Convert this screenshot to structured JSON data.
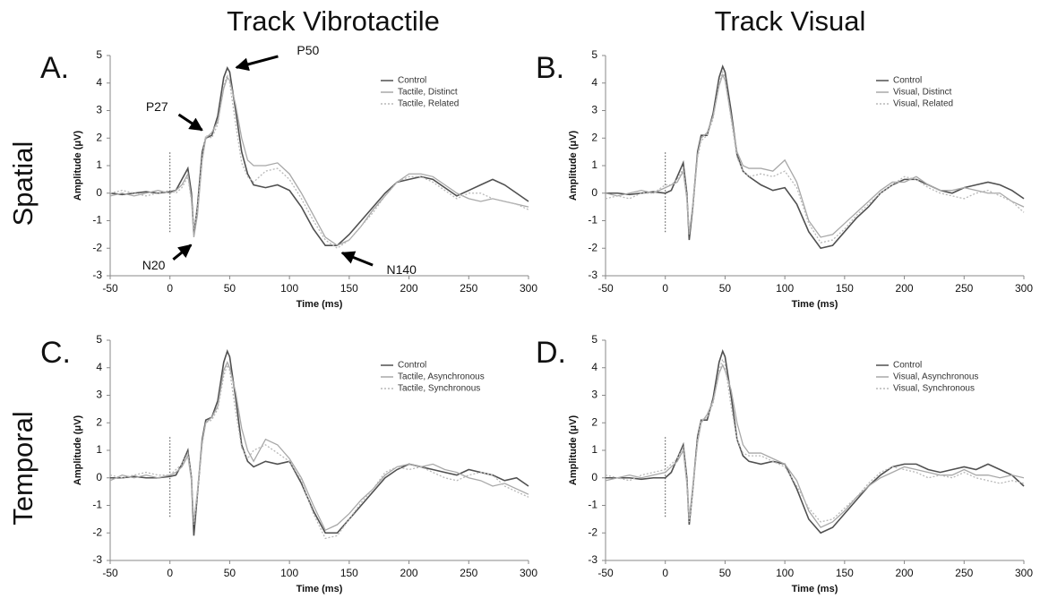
{
  "column_titles": [
    "Track Vibrotactile",
    "Track Visual"
  ],
  "row_titles": [
    "Spatial",
    "Temporal"
  ],
  "chart_data": [
    {
      "type": "line",
      "panel": "A.",
      "xlabel": "Time (ms)",
      "ylabel": "Amplitude (μV)",
      "x": [
        -50,
        -40,
        -30,
        -20,
        -10,
        0,
        5,
        10,
        15,
        18,
        20,
        23,
        27,
        30,
        35,
        40,
        45,
        48,
        50,
        55,
        60,
        65,
        70,
        80,
        90,
        100,
        110,
        120,
        130,
        140,
        150,
        160,
        170,
        180,
        190,
        200,
        210,
        220,
        230,
        240,
        250,
        260,
        270,
        280,
        290,
        300
      ],
      "series": [
        {
          "name": "Control",
          "color": "#505050",
          "values": [
            0,
            -0.05,
            0,
            0.05,
            0,
            0.05,
            0.1,
            0.5,
            0.9,
            0,
            -1.5,
            -0.5,
            1.5,
            2,
            2.1,
            2.8,
            4.2,
            4.55,
            4.4,
            3,
            1.5,
            0.7,
            0.3,
            0.2,
            0.3,
            0.1,
            -0.5,
            -1.3,
            -1.9,
            -1.9,
            -1.5,
            -1,
            -0.5,
            0,
            0.4,
            0.5,
            0.6,
            0.5,
            0.2,
            -0.1,
            0.1,
            0.3,
            0.5,
            0.3,
            0,
            -0.3
          ]
        },
        {
          "name": "Tactile, Distinct",
          "color": "#a8a8a8",
          "values": [
            -0.1,
            0,
            -0.1,
            0,
            0.1,
            0,
            0.1,
            0.3,
            0.7,
            -0.2,
            -1.6,
            -0.8,
            1.2,
            2,
            2.2,
            2.6,
            3.8,
            4.2,
            4.1,
            3.2,
            2,
            1.2,
            1,
            1,
            1.1,
            0.7,
            0,
            -0.8,
            -1.6,
            -1.9,
            -1.7,
            -1.2,
            -0.6,
            -0.1,
            0.4,
            0.7,
            0.7,
            0.6,
            0.3,
            0,
            -0.2,
            -0.3,
            -0.2,
            -0.3,
            -0.4,
            -0.5
          ]
        },
        {
          "name": "Tactile, Related",
          "color": "#b8b8b8",
          "dashed": true,
          "values": [
            0,
            0.1,
            0,
            -0.1,
            0,
            0.1,
            0,
            0.2,
            0.6,
            -0.3,
            -1.3,
            -0.6,
            1.3,
            2.1,
            2,
            2.5,
            3.9,
            4.3,
            4,
            2.5,
            1.1,
            0.6,
            0.4,
            0.8,
            0.9,
            0.5,
            -0.2,
            -1,
            -1.7,
            -2,
            -1.7,
            -1.2,
            -0.7,
            -0.1,
            0.4,
            0.6,
            0.6,
            0.4,
            0.1,
            -0.2,
            0,
            0,
            -0.2,
            -0.3,
            -0.4,
            -0.6
          ]
        }
      ],
      "annotations": [
        {
          "text": "P50",
          "x": 50,
          "y": 4.5
        },
        {
          "text": "P27",
          "x": 30,
          "y": 2.2
        },
        {
          "text": "N20",
          "x": 20,
          "y": -1.8
        },
        {
          "text": "N140",
          "x": 140,
          "y": -2.1
        }
      ],
      "xlim": [
        -50,
        300
      ],
      "ylim": [
        -3,
        5
      ],
      "xticks": [
        -50,
        0,
        50,
        100,
        150,
        200,
        250,
        300
      ],
      "yticks": [
        -3,
        -2,
        -1,
        0,
        1,
        2,
        3,
        4,
        5
      ]
    },
    {
      "type": "line",
      "panel": "B.",
      "xlabel": "Time (ms)",
      "ylabel": "Amplitude (μV)",
      "x": [
        -50,
        -40,
        -30,
        -20,
        -10,
        0,
        5,
        10,
        15,
        18,
        20,
        23,
        27,
        30,
        35,
        40,
        45,
        48,
        50,
        55,
        60,
        65,
        70,
        80,
        90,
        100,
        110,
        120,
        130,
        140,
        150,
        160,
        170,
        180,
        190,
        200,
        210,
        220,
        230,
        240,
        250,
        260,
        270,
        280,
        290,
        300
      ],
      "series": [
        {
          "name": "Control",
          "color": "#505050",
          "values": [
            0,
            0,
            -0.05,
            0,
            0.05,
            0,
            0.1,
            0.6,
            1.1,
            0,
            -1.7,
            -0.5,
            1.5,
            2.1,
            2.1,
            2.9,
            4.2,
            4.6,
            4.4,
            3,
            1.4,
            0.8,
            0.6,
            0.3,
            0.1,
            0.2,
            -0.4,
            -1.4,
            -2,
            -1.9,
            -1.4,
            -0.9,
            -0.5,
            0,
            0.3,
            0.5,
            0.5,
            0.3,
            0.1,
            0,
            0.2,
            0.3,
            0.4,
            0.3,
            0.1,
            -0.2
          ]
        },
        {
          "name": "Visual, Distinct",
          "color": "#a8a8a8",
          "values": [
            0,
            -0.1,
            0,
            0.1,
            0,
            0.2,
            0.3,
            0.4,
            0.8,
            -0.2,
            -1.5,
            -0.4,
            1.4,
            2,
            2.2,
            2.8,
            3.9,
            4.3,
            4.1,
            2.8,
            1.5,
            1,
            0.9,
            0.9,
            0.8,
            1.2,
            0.4,
            -1,
            -1.6,
            -1.5,
            -1.1,
            -0.7,
            -0.3,
            0.1,
            0.4,
            0.4,
            0.6,
            0.3,
            0.1,
            0.1,
            0.2,
            0.1,
            0,
            0,
            -0.3,
            -0.5
          ]
        },
        {
          "name": "Visual, Related",
          "color": "#b8b8b8",
          "dashed": true,
          "values": [
            -0.2,
            -0.1,
            -0.2,
            0,
            0,
            0.3,
            0.3,
            0.5,
            0.9,
            -0.1,
            -1.4,
            -0.5,
            1.3,
            1.9,
            2.1,
            2.7,
            4,
            4.4,
            4.2,
            2.7,
            1.3,
            0.8,
            0.6,
            0.7,
            0.6,
            0.8,
            0.2,
            -1.1,
            -1.8,
            -1.7,
            -1.3,
            -0.8,
            -0.4,
            0,
            0.3,
            0.6,
            0.5,
            0.2,
            0,
            -0.1,
            -0.2,
            0,
            0.1,
            -0.1,
            -0.3,
            -0.7
          ]
        }
      ],
      "xlim": [
        -50,
        300
      ],
      "ylim": [
        -3,
        5
      ],
      "xticks": [
        -50,
        0,
        50,
        100,
        150,
        200,
        250,
        300
      ],
      "yticks": [
        -3,
        -2,
        -1,
        0,
        1,
        2,
        3,
        4,
        5
      ]
    },
    {
      "type": "line",
      "panel": "C.",
      "xlabel": "Time (ms)",
      "ylabel": "Amplitude (μV)",
      "x": [
        -50,
        -40,
        -30,
        -20,
        -10,
        0,
        5,
        10,
        15,
        18,
        20,
        23,
        27,
        30,
        35,
        40,
        45,
        48,
        50,
        55,
        60,
        65,
        70,
        80,
        90,
        100,
        110,
        120,
        130,
        140,
        150,
        160,
        170,
        180,
        190,
        200,
        210,
        220,
        230,
        240,
        250,
        260,
        270,
        280,
        290,
        300
      ],
      "series": [
        {
          "name": "Control",
          "color": "#505050",
          "values": [
            0,
            0,
            0.05,
            0,
            0,
            0.05,
            0.1,
            0.5,
            1,
            0,
            -2.1,
            -0.6,
            1.4,
            2.1,
            2.2,
            2.8,
            4.2,
            4.6,
            4.4,
            2.9,
            1.2,
            0.6,
            0.4,
            0.6,
            0.5,
            0.6,
            -0.2,
            -1.2,
            -2,
            -2,
            -1.5,
            -1,
            -0.5,
            0,
            0.3,
            0.5,
            0.4,
            0.3,
            0.2,
            0.1,
            0.3,
            0.2,
            0.1,
            -0.1,
            0,
            -0.3
          ]
        },
        {
          "name": "Tactile, Asynchronous",
          "color": "#a8a8a8",
          "values": [
            -0.1,
            0.1,
            0,
            0.1,
            0,
            0.1,
            0.2,
            0.4,
            0.8,
            -0.1,
            -1.6,
            -0.5,
            1.3,
            2,
            2.2,
            2.6,
            3.9,
            4.2,
            4,
            3.1,
            1.8,
            1,
            0.6,
            1.4,
            1.2,
            0.7,
            0,
            -1,
            -1.9,
            -1.7,
            -1.3,
            -0.8,
            -0.4,
            0.1,
            0.4,
            0.5,
            0.4,
            0.5,
            0.3,
            0.2,
            0,
            -0.1,
            -0.3,
            -0.2,
            -0.4,
            -0.6
          ]
        },
        {
          "name": "Tactile, Synchronous",
          "color": "#b8b8b8",
          "dashed": true,
          "values": [
            0.1,
            0,
            0.1,
            0.2,
            0.1,
            0.1,
            0.3,
            0.5,
            0.9,
            0,
            -1.7,
            -0.6,
            1.2,
            2,
            2.1,
            2.5,
            3.7,
            4.1,
            3.9,
            2.4,
            1.1,
            0.7,
            1,
            1.2,
            0.9,
            0.6,
            -0.1,
            -1.3,
            -2.2,
            -2.1,
            -1.5,
            -0.9,
            -0.4,
            0.2,
            0.4,
            0.3,
            0.4,
            0.2,
            0,
            -0.1,
            0.1,
            0.2,
            0.1,
            -0.3,
            -0.5,
            -0.7
          ]
        }
      ],
      "xlim": [
        -50,
        300
      ],
      "ylim": [
        -3,
        5
      ],
      "xticks": [
        -50,
        0,
        50,
        100,
        150,
        200,
        250,
        300
      ],
      "yticks": [
        -3,
        -2,
        -1,
        0,
        1,
        2,
        3,
        4,
        5
      ]
    },
    {
      "type": "line",
      "panel": "D.",
      "xlabel": "Time (ms)",
      "ylabel": "Amplitude (μV)",
      "x": [
        -50,
        -40,
        -30,
        -20,
        -10,
        0,
        5,
        10,
        15,
        18,
        20,
        23,
        27,
        30,
        35,
        40,
        45,
        48,
        50,
        55,
        60,
        65,
        70,
        80,
        90,
        100,
        110,
        120,
        130,
        140,
        150,
        160,
        170,
        180,
        190,
        200,
        210,
        220,
        230,
        240,
        250,
        260,
        270,
        280,
        290,
        300
      ],
      "series": [
        {
          "name": "Control",
          "color": "#505050",
          "values": [
            0,
            0,
            0,
            -0.05,
            0,
            0,
            0.2,
            0.7,
            1.2,
            0,
            -1.7,
            -0.4,
            1.5,
            2.1,
            2.1,
            2.9,
            4.2,
            4.6,
            4.4,
            3,
            1.4,
            0.8,
            0.6,
            0.5,
            0.6,
            0.5,
            -0.4,
            -1.5,
            -2,
            -1.8,
            -1.3,
            -0.8,
            -0.3,
            0.1,
            0.4,
            0.5,
            0.5,
            0.3,
            0.2,
            0.3,
            0.4,
            0.3,
            0.5,
            0.3,
            0.1,
            -0.3
          ]
        },
        {
          "name": "Visual, Asynchronous",
          "color": "#a8a8a8",
          "values": [
            -0.1,
            0,
            0.1,
            0,
            0.1,
            0.2,
            0.4,
            0.6,
            1,
            -0.2,
            -1.5,
            -0.3,
            1.3,
            2,
            2.3,
            2.8,
            3.8,
            4.1,
            3.9,
            3.2,
            2,
            1.2,
            0.9,
            0.9,
            0.7,
            0.5,
            -0.1,
            -1.2,
            -1.8,
            -1.6,
            -1.2,
            -0.7,
            -0.3,
            0,
            0.2,
            0.4,
            0.3,
            0.2,
            0.1,
            0.1,
            0.3,
            0.1,
            0.1,
            0,
            0.1,
            0
          ]
        },
        {
          "name": "Visual, Synchronous",
          "color": "#b8b8b8",
          "dashed": true,
          "values": [
            0.1,
            0,
            -0.1,
            0.1,
            0.2,
            0.3,
            0.5,
            0.7,
            1.1,
            -0.1,
            -1.6,
            -0.5,
            1.4,
            2.1,
            2.2,
            2.7,
            3.9,
            4.3,
            4.1,
            2.6,
            1.4,
            0.9,
            0.8,
            0.8,
            0.6,
            0.4,
            -0.3,
            -1.1,
            -1.6,
            -1.5,
            -1.1,
            -0.7,
            -0.2,
            0.2,
            0.4,
            0.3,
            0.2,
            0,
            0.1,
            0,
            0.2,
            0,
            -0.1,
            -0.2,
            -0.1,
            -0.2
          ]
        }
      ],
      "xlim": [
        -50,
        300
      ],
      "ylim": [
        -3,
        5
      ],
      "xticks": [
        -50,
        0,
        50,
        100,
        150,
        200,
        250,
        300
      ],
      "yticks": [
        -3,
        -2,
        -1,
        0,
        1,
        2,
        3,
        4,
        5
      ]
    }
  ]
}
